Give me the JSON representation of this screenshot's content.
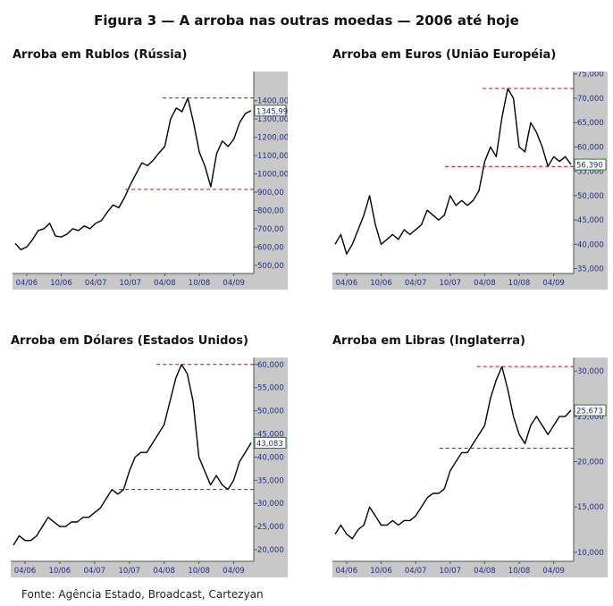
{
  "figure_title": "Figura 3 — A arroba nas outras moedas — 2006 até hoje",
  "source": "Fonte: Agência Estado, Broadcast, Cartezyan",
  "colors": {
    "line": "#000000",
    "reference_line": "#cc0000",
    "plot_bg": "#ffffff",
    "axis_strip": "#c8c8c8",
    "tick_text": "#1f2d8a"
  },
  "chart_data": [
    {
      "type": "line",
      "title": "Arroba em Rublos (Rússia)",
      "x_tick_labels": [
        "04/06",
        "10/06",
        "04/07",
        "10/07",
        "04/08",
        "10/08",
        "04/09"
      ],
      "y_tick_labels": [
        "500,00",
        "600,00",
        "700,00",
        "800,00",
        "900,00",
        "1000,00",
        "1100,00",
        "1200,00",
        "1300,00",
        "1400,00"
      ],
      "ylim": [
        455,
        1560
      ],
      "x_range": [
        "2006-02",
        "2009-07"
      ],
      "last_value_label": "1345,99",
      "last_value": 1345.99,
      "reference_lines": [
        1415,
        915
      ],
      "series": [
        {
          "values": [
            [
              "2006-02",
              620
            ],
            [
              "2006-03",
              585
            ],
            [
              "2006-04",
              600
            ],
            [
              "2006-05",
              640
            ],
            [
              "2006-06",
              690
            ],
            [
              "2006-07",
              700
            ],
            [
              "2006-08",
              730
            ],
            [
              "2006-09",
              660
            ],
            [
              "2006-10",
              655
            ],
            [
              "2006-11",
              670
            ],
            [
              "2006-12",
              700
            ],
            [
              "2007-01",
              690
            ],
            [
              "2007-02",
              715
            ],
            [
              "2007-03",
              700
            ],
            [
              "2007-04",
              730
            ],
            [
              "2007-05",
              745
            ],
            [
              "2007-06",
              790
            ],
            [
              "2007-07",
              830
            ],
            [
              "2007-08",
              815
            ],
            [
              "2007-09",
              870
            ],
            [
              "2007-10",
              940
            ],
            [
              "2007-11",
              1000
            ],
            [
              "2007-12",
              1060
            ],
            [
              "2008-01",
              1045
            ],
            [
              "2008-02",
              1075
            ],
            [
              "2008-03",
              1115
            ],
            [
              "2008-04",
              1150
            ],
            [
              "2008-05",
              1300
            ],
            [
              "2008-06",
              1360
            ],
            [
              "2008-07",
              1340
            ],
            [
              "2008-08",
              1415
            ],
            [
              "2008-09",
              1280
            ],
            [
              "2008-10",
              1120
            ],
            [
              "2008-11",
              1040
            ],
            [
              "2008-12",
              930
            ],
            [
              "2009-01",
              1110
            ],
            [
              "2009-02",
              1180
            ],
            [
              "2009-03",
              1150
            ],
            [
              "2009-04",
              1190
            ],
            [
              "2009-05",
              1280
            ],
            [
              "2009-06",
              1330
            ],
            [
              "2009-07",
              1345.99
            ]
          ]
        }
      ]
    },
    {
      "type": "line",
      "title": "Arroba em Euros (União Européia)",
      "x_tick_labels": [
        "04/06",
        "10/06",
        "04/07",
        "10/07",
        "04/08",
        "10/08",
        "04/09"
      ],
      "y_tick_labels": [
        "35,000",
        "40,000",
        "45,000",
        "50,000",
        "55,000",
        "60,000",
        "65,000",
        "70,000",
        "75,000"
      ],
      "ylim": [
        34,
        75.5
      ],
      "x_range": [
        "2006-02",
        "2009-07"
      ],
      "last_value_label": "56,390",
      "last_value": 56.39,
      "reference_lines": [
        72,
        56
      ],
      "series": [
        {
          "values": [
            [
              "2006-02",
              40
            ],
            [
              "2006-03",
              42
            ],
            [
              "2006-04",
              38
            ],
            [
              "2006-05",
              40
            ],
            [
              "2006-06",
              43
            ],
            [
              "2006-07",
              46
            ],
            [
              "2006-08",
              50
            ],
            [
              "2006-09",
              44
            ],
            [
              "2006-10",
              40
            ],
            [
              "2006-11",
              41
            ],
            [
              "2006-12",
              42
            ],
            [
              "2007-01",
              41
            ],
            [
              "2007-02",
              43
            ],
            [
              "2007-03",
              42
            ],
            [
              "2007-04",
              43
            ],
            [
              "2007-05",
              44
            ],
            [
              "2007-06",
              47
            ],
            [
              "2007-07",
              46
            ],
            [
              "2007-08",
              45
            ],
            [
              "2007-09",
              46
            ],
            [
              "2007-10",
              50
            ],
            [
              "2007-11",
              48
            ],
            [
              "2007-12",
              49
            ],
            [
              "2008-01",
              48
            ],
            [
              "2008-02",
              49
            ],
            [
              "2008-03",
              51
            ],
            [
              "2008-04",
              57
            ],
            [
              "2008-05",
              60
            ],
            [
              "2008-06",
              58
            ],
            [
              "2008-07",
              66
            ],
            [
              "2008-08",
              72
            ],
            [
              "2008-09",
              70
            ],
            [
              "2008-10",
              60
            ],
            [
              "2008-11",
              59
            ],
            [
              "2008-12",
              65
            ],
            [
              "2009-01",
              63
            ],
            [
              "2009-02",
              60
            ],
            [
              "2009-03",
              56
            ],
            [
              "2009-04",
              58
            ],
            [
              "2009-05",
              57
            ],
            [
              "2009-06",
              58
            ],
            [
              "2009-07",
              56.39
            ]
          ]
        }
      ]
    },
    {
      "type": "line",
      "title": "Arroba em Dólares (Estados Unidos)",
      "x_tick_labels": [
        "04/06",
        "10/06",
        "04/07",
        "10/07",
        "04/08",
        "10/08",
        "04/09"
      ],
      "y_tick_labels": [
        "20,000",
        "25,000",
        "30,000",
        "35,000",
        "40,000",
        "45,000",
        "50,000",
        "55,000",
        "60,000"
      ],
      "ylim": [
        17.5,
        61.5
      ],
      "x_range": [
        "2006-02",
        "2009-07"
      ],
      "last_value_label": "43,083",
      "last_value": 43.083,
      "reference_lines": [
        60,
        33
      ],
      "series": [
        {
          "values": [
            [
              "2006-02",
              21
            ],
            [
              "2006-03",
              23
            ],
            [
              "2006-04",
              22
            ],
            [
              "2006-05",
              22
            ],
            [
              "2006-06",
              23
            ],
            [
              "2006-07",
              25
            ],
            [
              "2006-08",
              27
            ],
            [
              "2006-09",
              26
            ],
            [
              "2006-10",
              25
            ],
            [
              "2006-11",
              25
            ],
            [
              "2006-12",
              26
            ],
            [
              "2007-01",
              26
            ],
            [
              "2007-02",
              27
            ],
            [
              "2007-03",
              27
            ],
            [
              "2007-04",
              28
            ],
            [
              "2007-05",
              29
            ],
            [
              "2007-06",
              31
            ],
            [
              "2007-07",
              33
            ],
            [
              "2007-08",
              32
            ],
            [
              "2007-09",
              33
            ],
            [
              "2007-10",
              37
            ],
            [
              "2007-11",
              40
            ],
            [
              "2007-12",
              41
            ],
            [
              "2008-01",
              41
            ],
            [
              "2008-02",
              43
            ],
            [
              "2008-03",
              45
            ],
            [
              "2008-04",
              47
            ],
            [
              "2008-05",
              52
            ],
            [
              "2008-06",
              57
            ],
            [
              "2008-07",
              60
            ],
            [
              "2008-08",
              58
            ],
            [
              "2008-09",
              52
            ],
            [
              "2008-10",
              40
            ],
            [
              "2008-11",
              37
            ],
            [
              "2008-12",
              34
            ],
            [
              "2009-01",
              36
            ],
            [
              "2009-02",
              34
            ],
            [
              "2009-03",
              33
            ],
            [
              "2009-04",
              35
            ],
            [
              "2009-05",
              39
            ],
            [
              "2009-06",
              41
            ],
            [
              "2009-07",
              43.083
            ]
          ]
        }
      ]
    },
    {
      "type": "line",
      "title": "Arroba em Libras (Inglaterra)",
      "x_tick_labels": [
        "04/06",
        "10/06",
        "04/07",
        "10/07",
        "04/08",
        "10/08",
        "04/09"
      ],
      "y_tick_labels": [
        "10,000",
        "15,000",
        "20,000",
        "25,000",
        "30,000"
      ],
      "ylim": [
        9,
        31.5
      ],
      "x_range": [
        "2006-02",
        "2009-07"
      ],
      "last_value_label": "25,673",
      "last_value": 25.673,
      "reference_lines": [
        30.5,
        21.5
      ],
      "series": [
        {
          "values": [
            [
              "2006-02",
              12
            ],
            [
              "2006-03",
              13
            ],
            [
              "2006-04",
              12
            ],
            [
              "2006-05",
              11.5
            ],
            [
              "2006-06",
              12.5
            ],
            [
              "2006-07",
              13
            ],
            [
              "2006-08",
              15
            ],
            [
              "2006-09",
              14
            ],
            [
              "2006-10",
              13
            ],
            [
              "2006-11",
              13
            ],
            [
              "2006-12",
              13.5
            ],
            [
              "2007-01",
              13
            ],
            [
              "2007-02",
              13.5
            ],
            [
              "2007-03",
              13.5
            ],
            [
              "2007-04",
              14
            ],
            [
              "2007-05",
              15
            ],
            [
              "2007-06",
              16
            ],
            [
              "2007-07",
              16.5
            ],
            [
              "2007-08",
              16.5
            ],
            [
              "2007-09",
              17
            ],
            [
              "2007-10",
              19
            ],
            [
              "2007-11",
              20
            ],
            [
              "2007-12",
              21
            ],
            [
              "2008-01",
              21
            ],
            [
              "2008-02",
              22
            ],
            [
              "2008-03",
              23
            ],
            [
              "2008-04",
              24
            ],
            [
              "2008-05",
              27
            ],
            [
              "2008-06",
              29
            ],
            [
              "2008-07",
              30.5
            ],
            [
              "2008-08",
              28
            ],
            [
              "2008-09",
              25
            ],
            [
              "2008-10",
              23
            ],
            [
              "2008-11",
              22
            ],
            [
              "2008-12",
              24
            ],
            [
              "2009-01",
              25
            ],
            [
              "2009-02",
              24
            ],
            [
              "2009-03",
              23
            ],
            [
              "2009-04",
              24
            ],
            [
              "2009-05",
              25
            ],
            [
              "2009-06",
              25
            ],
            [
              "2009-07",
              25.673
            ]
          ]
        }
      ]
    }
  ]
}
